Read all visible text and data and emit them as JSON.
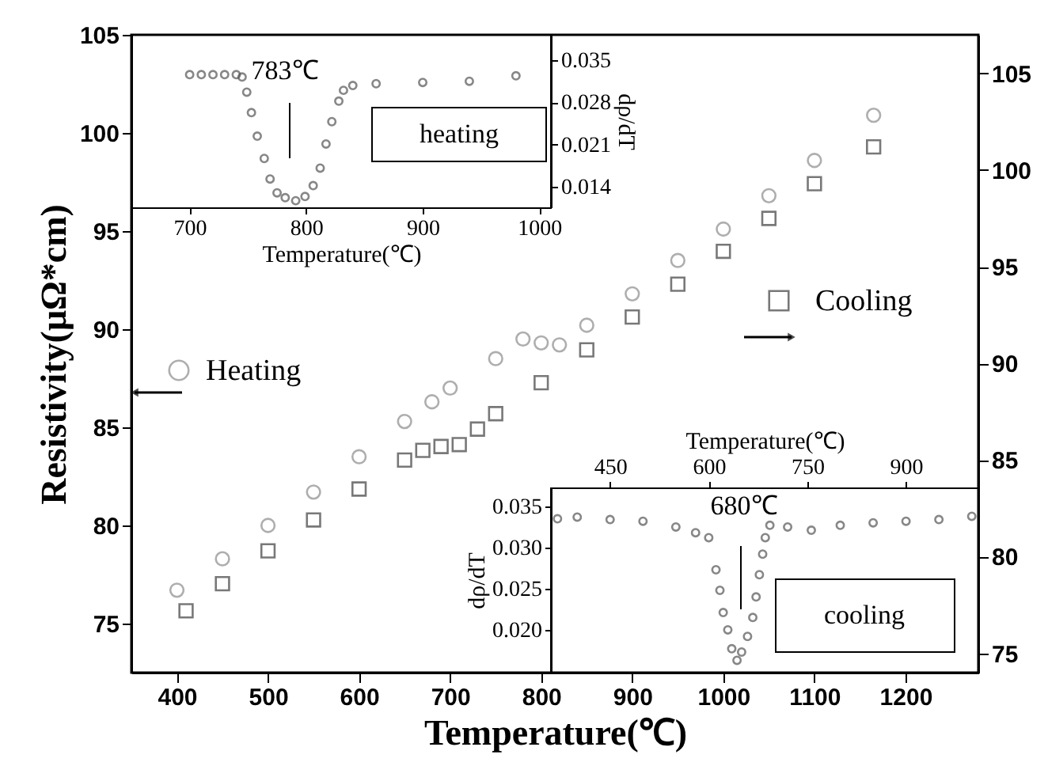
{
  "chart_data": [
    {
      "type": "scatter",
      "xlabel": "Temperature(℃)",
      "ylabel": "Resistivity(μΩ*cm)",
      "xlim": [
        350,
        1280
      ],
      "xticks": [
        400,
        500,
        600,
        700,
        800,
        900,
        1000,
        1100,
        1200
      ],
      "ylim": [
        72.5,
        105
      ],
      "yticks": [
        75,
        80,
        85,
        90,
        95,
        100,
        105
      ],
      "y2lim": [
        74,
        107
      ],
      "y2ticks": [
        75,
        80,
        85,
        90,
        95,
        100,
        105
      ],
      "grid": false,
      "legend": "left",
      "series": [
        {
          "name": "Heating",
          "color": "#8c8c8c",
          "marker": "circle",
          "axis": "y",
          "x": [
            400,
            450,
            500,
            550,
            600,
            650,
            680,
            700,
            750,
            780,
            800,
            820,
            850,
            900,
            950,
            1000,
            1050,
            1100,
            1165
          ],
          "values": [
            76.7,
            78.3,
            80.0,
            81.7,
            83.5,
            85.3,
            86.3,
            87.0,
            88.5,
            89.5,
            89.3,
            89.2,
            90.2,
            91.8,
            93.5,
            95.1,
            96.8,
            98.6,
            100.9
          ]
        },
        {
          "name": "Cooling",
          "color": "#404040",
          "marker": "square",
          "axis": "y2",
          "x": [
            410,
            450,
            500,
            550,
            600,
            650,
            670,
            690,
            710,
            730,
            750,
            800,
            850,
            900,
            950,
            1000,
            1050,
            1100,
            1165
          ],
          "values": [
            77.2,
            78.6,
            80.3,
            81.9,
            83.5,
            85.0,
            85.5,
            85.7,
            85.8,
            86.6,
            87.4,
            89.0,
            90.7,
            92.4,
            94.1,
            95.8,
            97.5,
            99.3,
            101.2
          ]
        }
      ]
    },
    {
      "type": "scatter",
      "xlabel": "Temperature(℃)",
      "y2label": "dρ/dT",
      "xlim": [
        650,
        1010
      ],
      "xticks": [
        700,
        800,
        900,
        1000
      ],
      "y2lim": [
        0.0106,
        0.0392
      ],
      "y2ticks": [
        0.014,
        0.021,
        0.028,
        0.035
      ],
      "grid": false,
      "marker": "circle",
      "annotations": [
        "783℃",
        "heating"
      ],
      "series": [
        {
          "color": "#555555",
          "axis": "y2",
          "x": [
            700,
            710,
            720,
            730,
            740,
            745,
            749,
            753,
            758,
            764,
            769,
            775,
            782,
            791,
            799,
            806,
            812,
            817,
            822,
            828,
            832,
            840,
            860,
            900,
            940,
            980
          ],
          "values": [
            0.0326,
            0.0326,
            0.0326,
            0.0326,
            0.0326,
            0.0322,
            0.0297,
            0.0263,
            0.0224,
            0.0187,
            0.0153,
            0.013,
            0.0122,
            0.0117,
            0.0124,
            0.0142,
            0.0171,
            0.0211,
            0.0248,
            0.0282,
            0.03,
            0.0308,
            0.0311,
            0.0313,
            0.0315,
            0.0324
          ]
        }
      ]
    },
    {
      "type": "scatter",
      "xlabel": "Temperature(℃)",
      "ylabel": "dρ/dT",
      "xlim": [
        360,
        1010
      ],
      "xticks": [
        450,
        600,
        750,
        900
      ],
      "ylim": [
        0.0148,
        0.0373
      ],
      "yticks": [
        {
          "value": 0.02,
          "label": "0.020"
        },
        0.025,
        {
          "value": 0.03,
          "label": "0.030"
        },
        0.035
      ],
      "grid": false,
      "marker": "circle",
      "annotations": [
        "680℃",
        "cooling"
      ],
      "series": [
        {
          "color": "#555555",
          "axis": "y",
          "x": [
            370,
            400,
            450,
            500,
            550,
            580,
            600,
            611,
            617,
            622,
            629,
            635,
            643,
            650,
            659,
            667,
            672,
            677,
            682,
            686,
            693,
            720,
            756,
            800,
            850,
            900,
            950,
            1000
          ],
          "values": [
            0.0335,
            0.0337,
            0.0334,
            0.0332,
            0.0325,
            0.0318,
            0.0312,
            0.0273,
            0.0248,
            0.0221,
            0.02,
            0.0177,
            0.0163,
            0.0173,
            0.0192,
            0.0215,
            0.024,
            0.0267,
            0.0292,
            0.0312,
            0.0327,
            0.0325,
            0.0321,
            0.0327,
            0.033,
            0.0332,
            0.0334,
            0.0338
          ]
        }
      ]
    }
  ]
}
